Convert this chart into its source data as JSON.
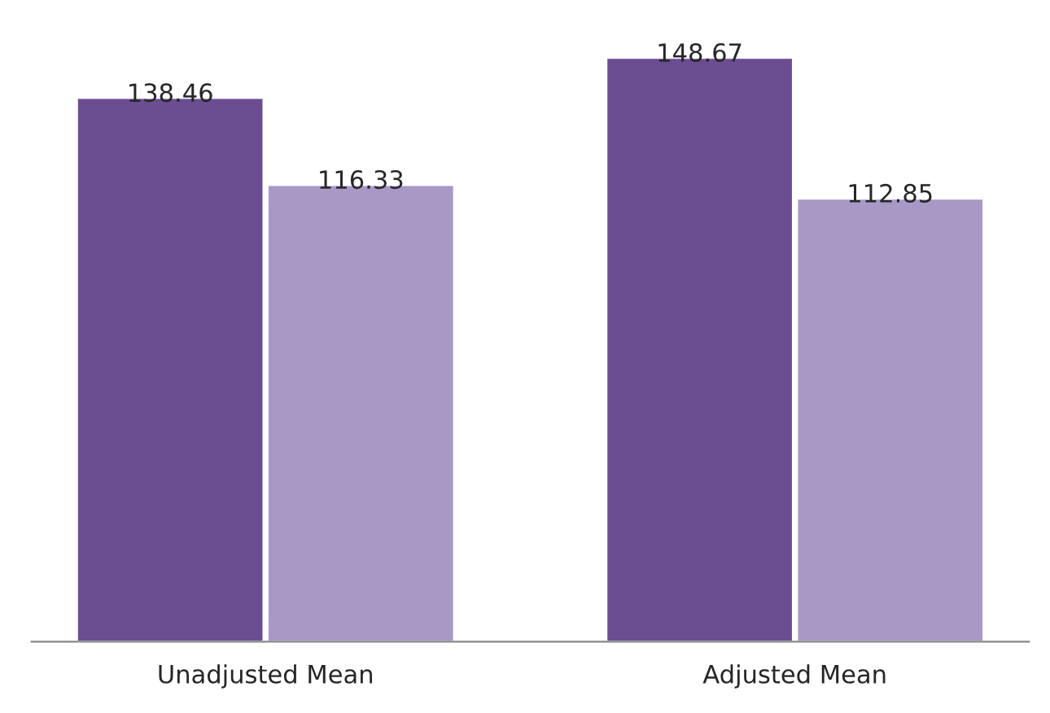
{
  "chart_data": {
    "type": "bar",
    "categories": [
      "Unadjusted Mean",
      "Adjusted Mean"
    ],
    "series": [
      {
        "color": "#6b4d91",
        "values": [
          138.46,
          148.67
        ]
      },
      {
        "color": "#a898c6",
        "values": [
          116.33,
          112.85
        ]
      }
    ],
    "data_labels": true,
    "grid": false,
    "legend": false
  }
}
